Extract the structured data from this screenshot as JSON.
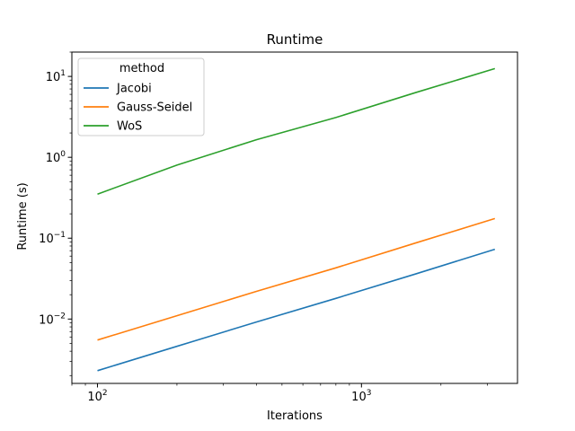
{
  "chart_data": {
    "type": "line",
    "title": "Runtime",
    "xlabel": "Iterations",
    "ylabel": "Runtime (s)",
    "xscale": "log",
    "yscale": "log",
    "xlim": [
      80,
      3900
    ],
    "ylim": [
      0.0016,
      20
    ],
    "x_ticks": [
      100,
      1000
    ],
    "x_tick_labels": [
      {
        "base": "10",
        "exp": "2"
      },
      {
        "base": "10",
        "exp": "3"
      }
    ],
    "y_ticks": [
      0.01,
      0.1,
      1,
      10
    ],
    "y_tick_labels": [
      {
        "base": "10",
        "exp": "−2"
      },
      {
        "base": "10",
        "exp": "−1"
      },
      {
        "base": "10",
        "exp": "0"
      },
      {
        "base": "10",
        "exp": "1"
      }
    ],
    "grid": false,
    "legend": {
      "title": "method",
      "placement": "top-left"
    },
    "x": [
      100,
      200,
      400,
      800,
      1600,
      3200
    ],
    "series": [
      {
        "name": "Jacobi",
        "color": "#1f77b4",
        "values": [
          0.0023,
          0.0046,
          0.0092,
          0.018,
          0.036,
          0.073
        ]
      },
      {
        "name": "Gauss-Seidel",
        "color": "#ff7f0e",
        "values": [
          0.0055,
          0.011,
          0.022,
          0.043,
          0.087,
          0.175
        ]
      },
      {
        "name": "WoS",
        "color": "#2ca02c",
        "values": [
          0.35,
          0.8,
          1.65,
          3.1,
          6.3,
          12.5
        ]
      }
    ]
  }
}
